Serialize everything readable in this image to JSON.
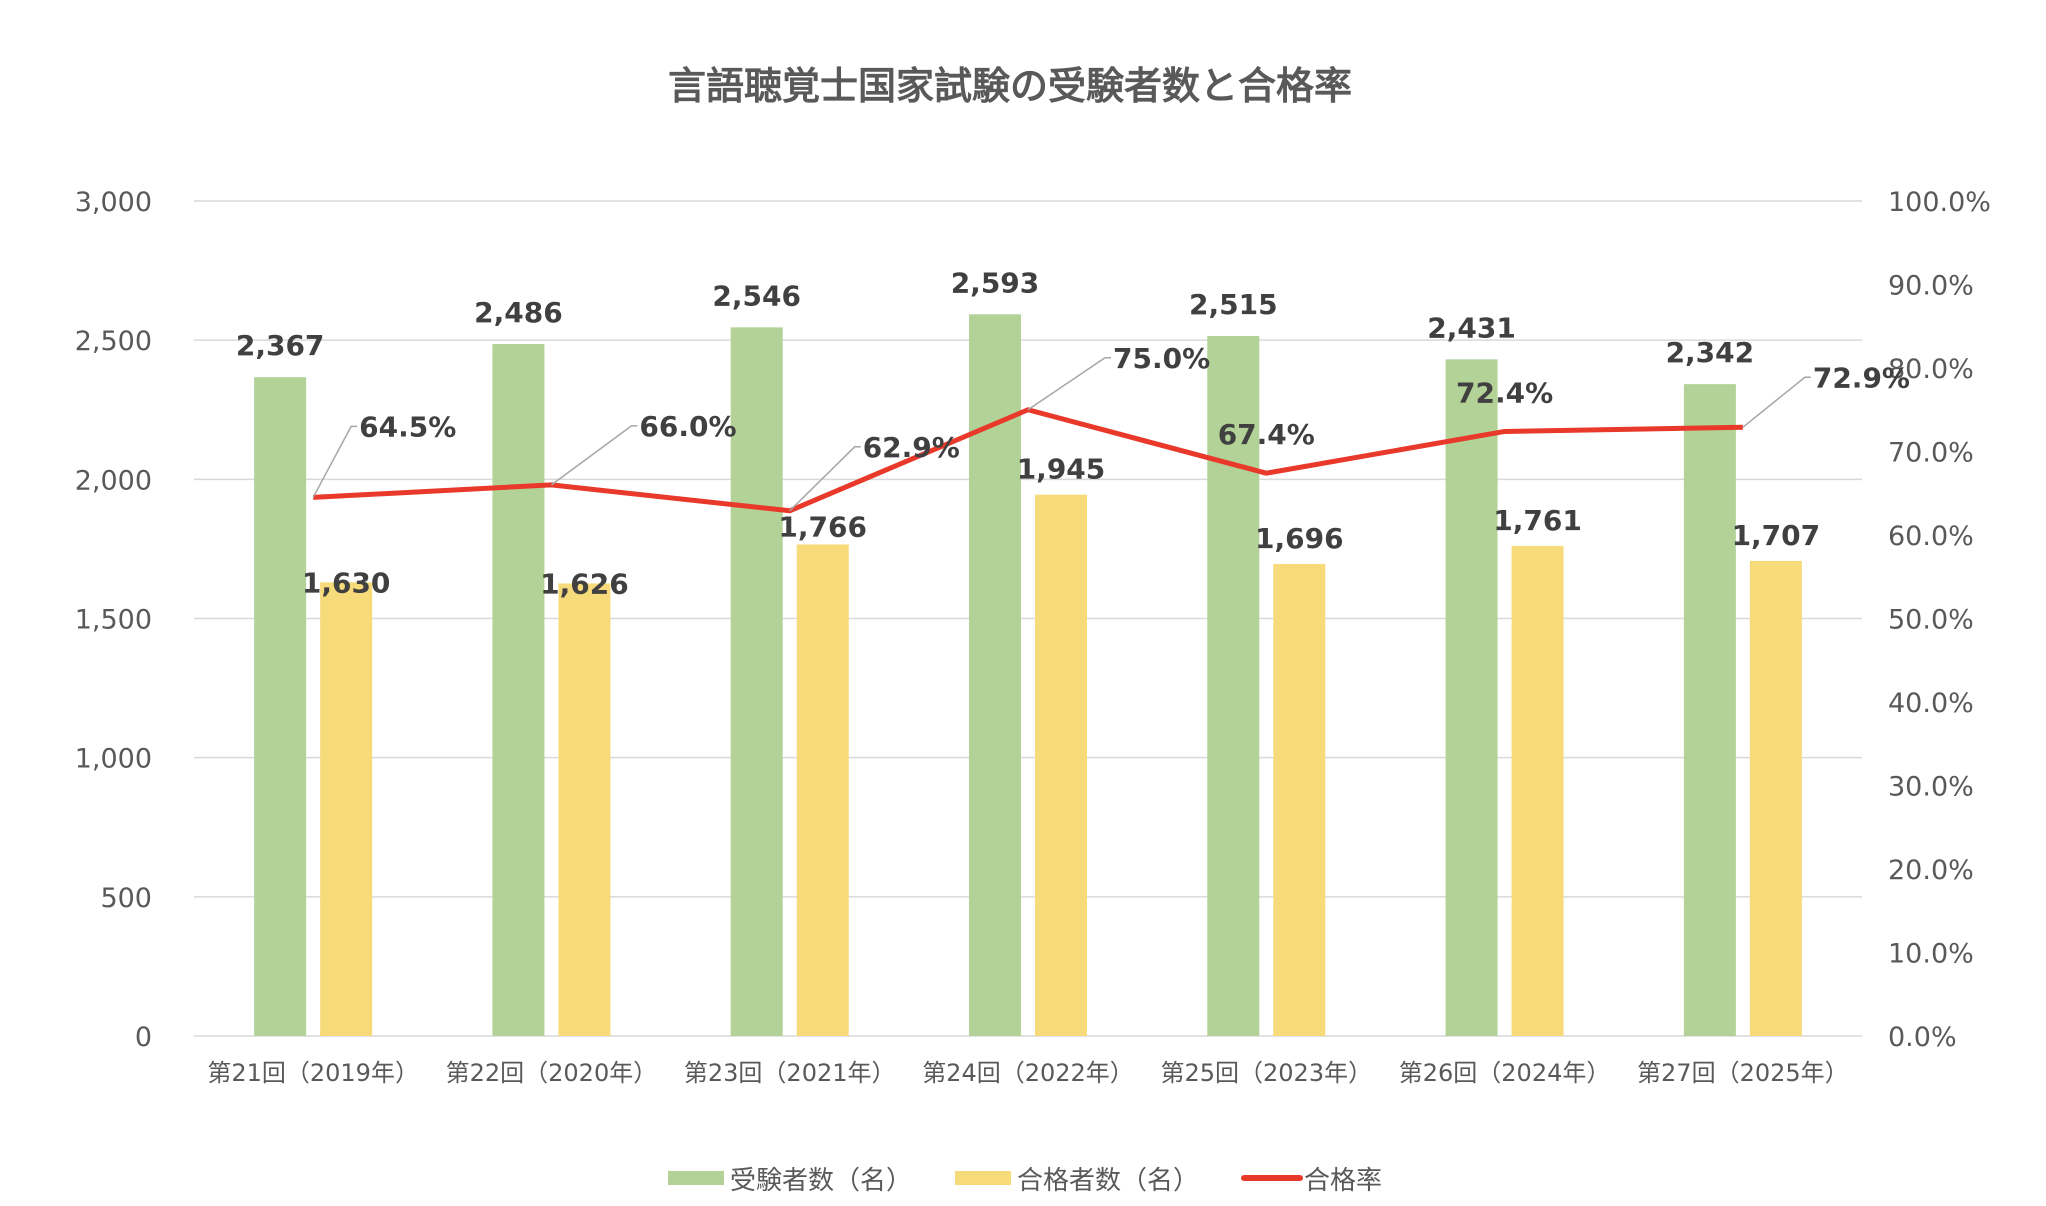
{
  "chart_data": {
    "type": "bar+line",
    "title": "言語聴覚士国家試験の受験者数と合格率",
    "categories": [
      "第21回（2019年）",
      "第22回（2020年）",
      "第23回（2021年）",
      "第24回（2022年）",
      "第25回（2023年）",
      "第26回（2024年）",
      "第27回（2025年）"
    ],
    "series": [
      {
        "name": "受験者数（名）",
        "type": "bar",
        "axis": "left",
        "color": "#b2d297",
        "values": [
          2367,
          2486,
          2546,
          2593,
          2515,
          2431,
          2342
        ],
        "labels": [
          "2,367",
          "2,486",
          "2,546",
          "2,593",
          "2,515",
          "2,431",
          "2,342"
        ]
      },
      {
        "name": "合格者数（名）",
        "type": "bar",
        "axis": "left",
        "color": "#f7da7a",
        "values": [
          1630,
          1626,
          1766,
          1945,
          1696,
          1761,
          1707
        ],
        "labels": [
          "1,630",
          "1,626",
          "1,766",
          "1,945",
          "1,696",
          "1,761",
          "1,707"
        ]
      },
      {
        "name": "合格率",
        "type": "line",
        "axis": "right",
        "color": "#e8392a",
        "values": [
          64.5,
          66.0,
          62.9,
          75.0,
          67.4,
          72.4,
          72.9
        ],
        "labels": [
          "64.5%",
          "66.0%",
          "62.9%",
          "75.0%",
          "67.4%",
          "72.4%",
          "72.9%"
        ]
      }
    ],
    "y_left": {
      "min": 0,
      "max": 3000,
      "ticks": [
        0,
        500,
        1000,
        1500,
        2000,
        2500,
        3000
      ],
      "tick_labels": [
        "0",
        "500",
        "1,000",
        "1,500",
        "2,000",
        "2,500",
        "3,000"
      ]
    },
    "y_right": {
      "min": 0,
      "max": 100,
      "ticks": [
        0,
        10,
        20,
        30,
        40,
        50,
        60,
        70,
        80,
        90,
        100
      ],
      "tick_labels": [
        "0.0%",
        "10.0%",
        "20.0%",
        "30.0%",
        "40.0%",
        "50.0%",
        "60.0%",
        "70.0%",
        "80.0%",
        "90.0%",
        "100.0%"
      ]
    },
    "grid": true,
    "legend": "bottom",
    "gridline_color": "#d9d9d9"
  }
}
